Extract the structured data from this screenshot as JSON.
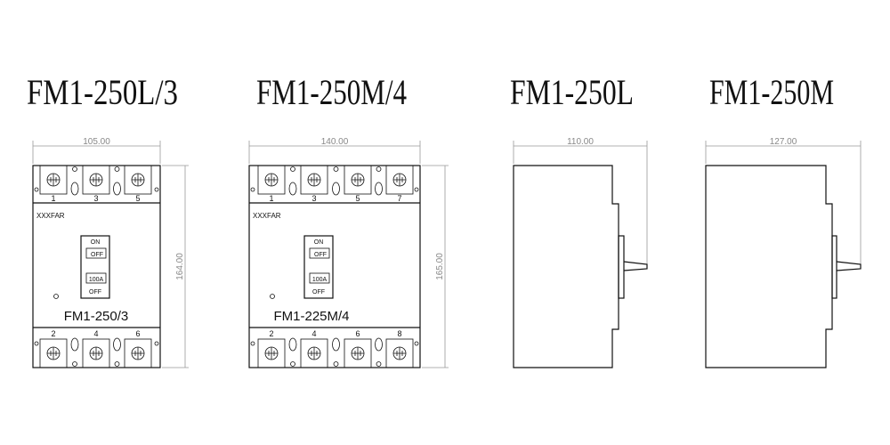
{
  "titles": [
    "FM1-250L/3",
    "FM1-250M/4",
    "FM1-250L",
    "FM1-250M"
  ],
  "views": [
    {
      "type": "front",
      "width_dim": "105.00",
      "height_dim": "164.00",
      "brand": "XXXFAR",
      "model": "FM1-250/3",
      "switch_on": "ON",
      "switch_off_top": "OFF",
      "rating": "100A",
      "switch_off": "OFF",
      "top_terminals": [
        "1",
        "3",
        "5"
      ],
      "bottom_terminals": [
        "2",
        "4",
        "6"
      ]
    },
    {
      "type": "front",
      "width_dim": "140.00",
      "height_dim": "165.00",
      "brand": "XXXFAR",
      "model": "FM1-225M/4",
      "switch_on": "ON",
      "switch_off_top": "OFF",
      "rating": "100A",
      "switch_off": "OFF",
      "top_terminals": [
        "1",
        "3",
        "5",
        "7"
      ],
      "bottom_terminals": [
        "2",
        "4",
        "6",
        "8"
      ]
    },
    {
      "type": "side",
      "depth_dim": "110.00"
    },
    {
      "type": "side",
      "depth_dim": "127.00"
    }
  ]
}
